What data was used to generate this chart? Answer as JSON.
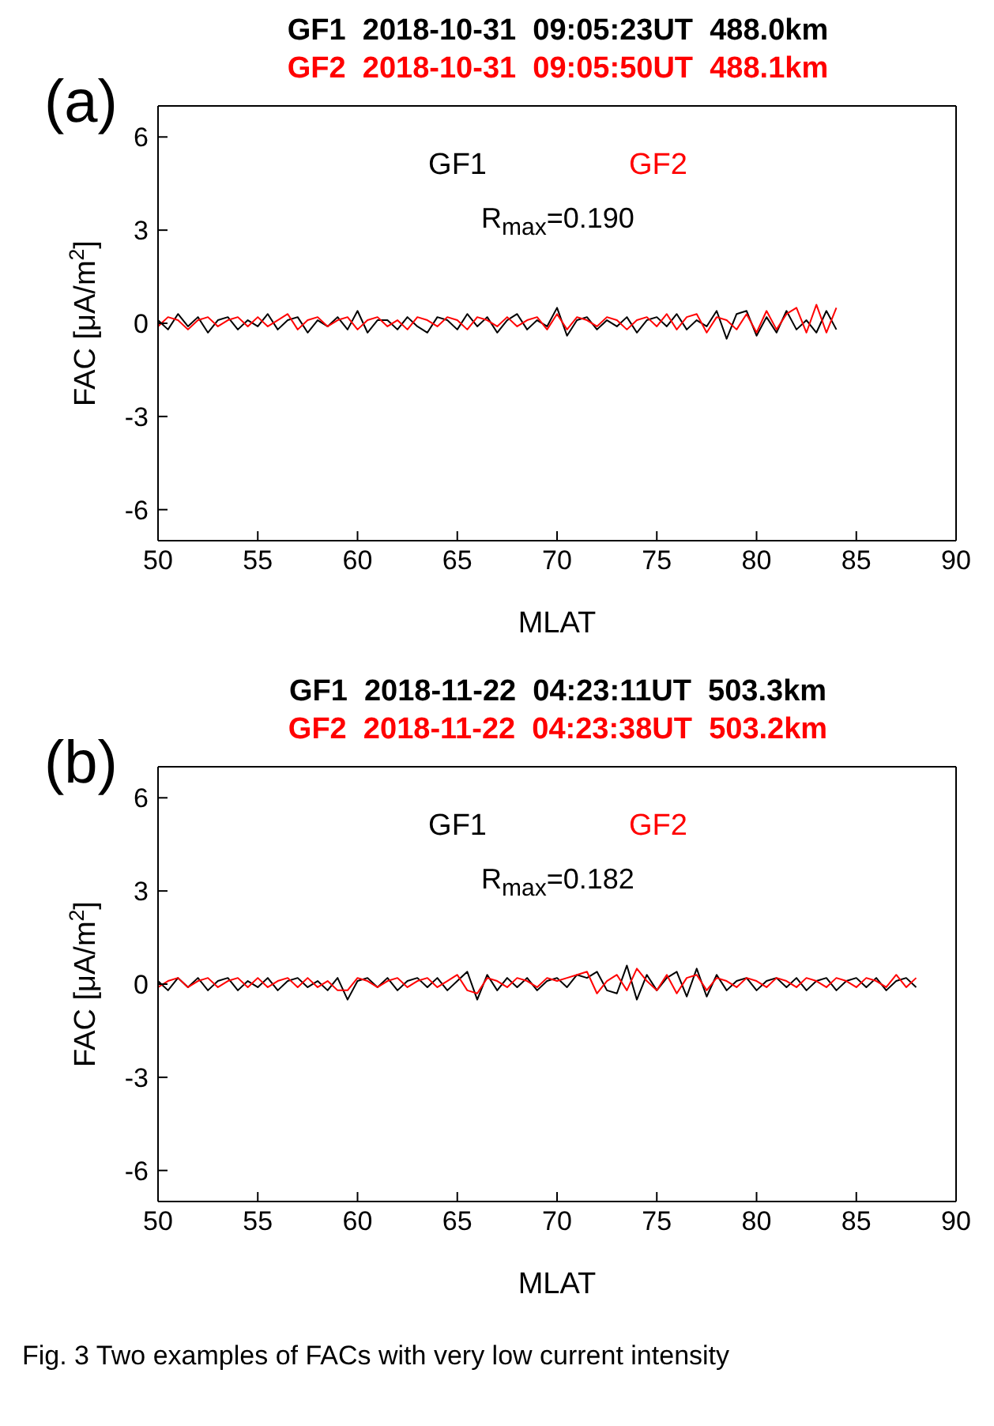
{
  "chart_data": [
    {
      "type": "line",
      "title": "GF1  2018-10-31  09:05:23UT  488.0km",
      "subtitle": "GF2  2018-10-31  09:05:50UT  488.1km",
      "xlabel": "MLAT",
      "ylabel": "FAC [μA/m$^{2}$]",
      "annotations": [
        "(a)",
        "R$_{max}$=0.190"
      ],
      "legend": "top",
      "xlim": [
        50,
        90
      ],
      "xticks": [
        50,
        55,
        60,
        65,
        70,
        75,
        80,
        85,
        90
      ],
      "ylim": [
        -7,
        7
      ],
      "yticks": [
        -6,
        -3,
        0,
        3,
        6
      ],
      "x": [
        50,
        50.5,
        51,
        51.5,
        52,
        52.5,
        53,
        53.5,
        54,
        54.5,
        55,
        55.5,
        56,
        56.5,
        57,
        57.5,
        58,
        58.5,
        59,
        59.5,
        60,
        60.5,
        61,
        61.5,
        62,
        62.5,
        63,
        63.5,
        64,
        64.5,
        65,
        65.5,
        66,
        66.5,
        67,
        67.5,
        68,
        68.5,
        69,
        69.5,
        70,
        70.5,
        71,
        71.5,
        72,
        72.5,
        73,
        73.5,
        74,
        74.5,
        75,
        75.5,
        76,
        76.5,
        77,
        77.5,
        78,
        78.5,
        79,
        79.5,
        80,
        80.5,
        81,
        81.5,
        82,
        82.5,
        83,
        83.5,
        84
      ],
      "series": [
        {
          "name": "GF1",
          "color": "#000000",
          "values": [
            0.1,
            -0.2,
            0.3,
            -0.1,
            0.2,
            -0.3,
            0.1,
            0.2,
            -0.2,
            0.1,
            -0.1,
            0.3,
            -0.2,
            0.1,
            0.2,
            -0.3,
            0.1,
            -0.1,
            0.2,
            -0.2,
            0.4,
            -0.3,
            0.1,
            0.1,
            -0.2,
            0.2,
            -0.1,
            -0.3,
            0.2,
            0.1,
            -0.2,
            0.3,
            -0.1,
            0.2,
            -0.3,
            0.1,
            0.3,
            -0.2,
            0.1,
            -0.1,
            0.5,
            -0.4,
            0.1,
            0.2,
            -0.2,
            0.1,
            -0.1,
            0.2,
            -0.3,
            0.1,
            0.2,
            -0.1,
            0.3,
            -0.2,
            0.1,
            -0.1,
            0.4,
            -0.5,
            0.3,
            0.4,
            -0.4,
            0.2,
            -0.3,
            0.4,
            -0.2,
            0.1,
            -0.3,
            0.4,
            -0.2
          ]
        },
        {
          "name": "GF2",
          "color": "#ff0000",
          "values": [
            -0.1,
            0.2,
            0.1,
            -0.2,
            0.1,
            0.2,
            -0.1,
            0.1,
            0.2,
            -0.1,
            0.2,
            -0.1,
            0.1,
            0.3,
            -0.2,
            0.1,
            0.2,
            -0.1,
            0.1,
            0.2,
            -0.2,
            0.1,
            0.2,
            -0.1,
            0.1,
            -0.2,
            0.2,
            0.1,
            -0.1,
            0.2,
            0.1,
            -0.2,
            0.2,
            0.1,
            -0.1,
            0.2,
            -0.1,
            0.1,
            0.2,
            -0.2,
            0.3,
            -0.2,
            0.2,
            0.1,
            -0.1,
            0.2,
            0.1,
            -0.2,
            0.1,
            0.2,
            -0.1,
            0.3,
            -0.2,
            0.2,
            0.3,
            -0.3,
            0.2,
            0.1,
            -0.2,
            0.3,
            -0.3,
            0.4,
            -0.2,
            0.3,
            0.5,
            -0.3,
            0.6,
            -0.3,
            0.5
          ]
        }
      ]
    },
    {
      "type": "line",
      "title": "GF1  2018-11-22  04:23:11UT  503.3km",
      "subtitle": "GF2  2018-11-22  04:23:38UT  503.2km",
      "xlabel": "MLAT",
      "ylabel": "FAC [μA/m$^{2}$]",
      "annotations": [
        "(b)",
        "R$_{max}$=0.182",
        "Fig. 3  Two examples of FACs with very low current intensity"
      ],
      "legend": "top",
      "xlim": [
        50,
        90
      ],
      "xticks": [
        50,
        55,
        60,
        65,
        70,
        75,
        80,
        85,
        90
      ],
      "ylim": [
        -7,
        7
      ],
      "yticks": [
        -6,
        -3,
        0,
        3,
        6
      ],
      "x": [
        50,
        50.5,
        51,
        51.5,
        52,
        52.5,
        53,
        53.5,
        54,
        54.5,
        55,
        55.5,
        56,
        56.5,
        57,
        57.5,
        58,
        58.5,
        59,
        59.5,
        60,
        60.5,
        61,
        61.5,
        62,
        62.5,
        63,
        63.5,
        64,
        64.5,
        65,
        65.5,
        66,
        66.5,
        67,
        67.5,
        68,
        68.5,
        69,
        69.5,
        70,
        70.5,
        71,
        71.5,
        72,
        72.5,
        73,
        73.5,
        74,
        74.5,
        75,
        75.5,
        76,
        76.5,
        77,
        77.5,
        78,
        78.5,
        79,
        79.5,
        80,
        80.5,
        81,
        81.5,
        82,
        82.5,
        83,
        83.5,
        84,
        84.5,
        85,
        85.5,
        86,
        86.5,
        87,
        87.5,
        88
      ],
      "series": [
        {
          "name": "GF1",
          "color": "#000000",
          "values": [
            0.1,
            -0.2,
            0.2,
            -0.1,
            0.2,
            -0.2,
            0.1,
            0.2,
            -0.2,
            0.1,
            -0.1,
            0.2,
            -0.2,
            0.1,
            0.2,
            -0.1,
            0.1,
            -0.2,
            0.2,
            -0.5,
            0.1,
            0.2,
            -0.1,
            0.2,
            -0.2,
            0.1,
            0.2,
            -0.1,
            0.2,
            -0.2,
            0.1,
            0.4,
            -0.5,
            0.3,
            -0.2,
            0.2,
            -0.1,
            0.2,
            -0.2,
            0.1,
            0.2,
            -0.1,
            0.3,
            0.2,
            0.4,
            -0.2,
            -0.3,
            0.6,
            -0.5,
            0.3,
            -0.2,
            0.2,
            0.4,
            -0.4,
            0.5,
            -0.4,
            0.3,
            -0.2,
            0.1,
            0.2,
            -0.2,
            0.1,
            0.2,
            -0.1,
            0.2,
            -0.2,
            0.1,
            0.2,
            -0.2,
            0.1,
            0.2,
            -0.1,
            0.2,
            -0.2,
            0.1,
            0.2,
            -0.1
          ]
        },
        {
          "name": "GF2",
          "color": "#ff0000",
          "values": [
            -0.1,
            0.1,
            0.2,
            -0.1,
            0.1,
            0.2,
            -0.1,
            0.1,
            0.2,
            -0.1,
            0.2,
            -0.1,
            0.1,
            0.2,
            -0.1,
            0.2,
            -0.1,
            0.1,
            -0.2,
            -0.2,
            0.2,
            0.1,
            -0.1,
            0.1,
            0.2,
            -0.1,
            0.1,
            0.2,
            -0.1,
            0.1,
            0.3,
            -0.2,
            -0.3,
            0.2,
            0.1,
            -0.1,
            0.2,
            0.1,
            -0.1,
            0.2,
            0.1,
            0.2,
            0.3,
            0.4,
            -0.3,
            0.1,
            0.3,
            -0.2,
            0.5,
            0.1,
            -0.2,
            0.3,
            -0.3,
            0.2,
            0.3,
            -0.2,
            0.2,
            0.1,
            -0.1,
            0.2,
            0.1,
            -0.1,
            0.2,
            0.1,
            -0.1,
            0.2,
            0.1,
            -0.1,
            0.2,
            0.1,
            -0.1,
            0.2,
            0.1,
            -0.1,
            0.3,
            -0.1,
            0.2
          ]
        }
      ]
    }
  ]
}
